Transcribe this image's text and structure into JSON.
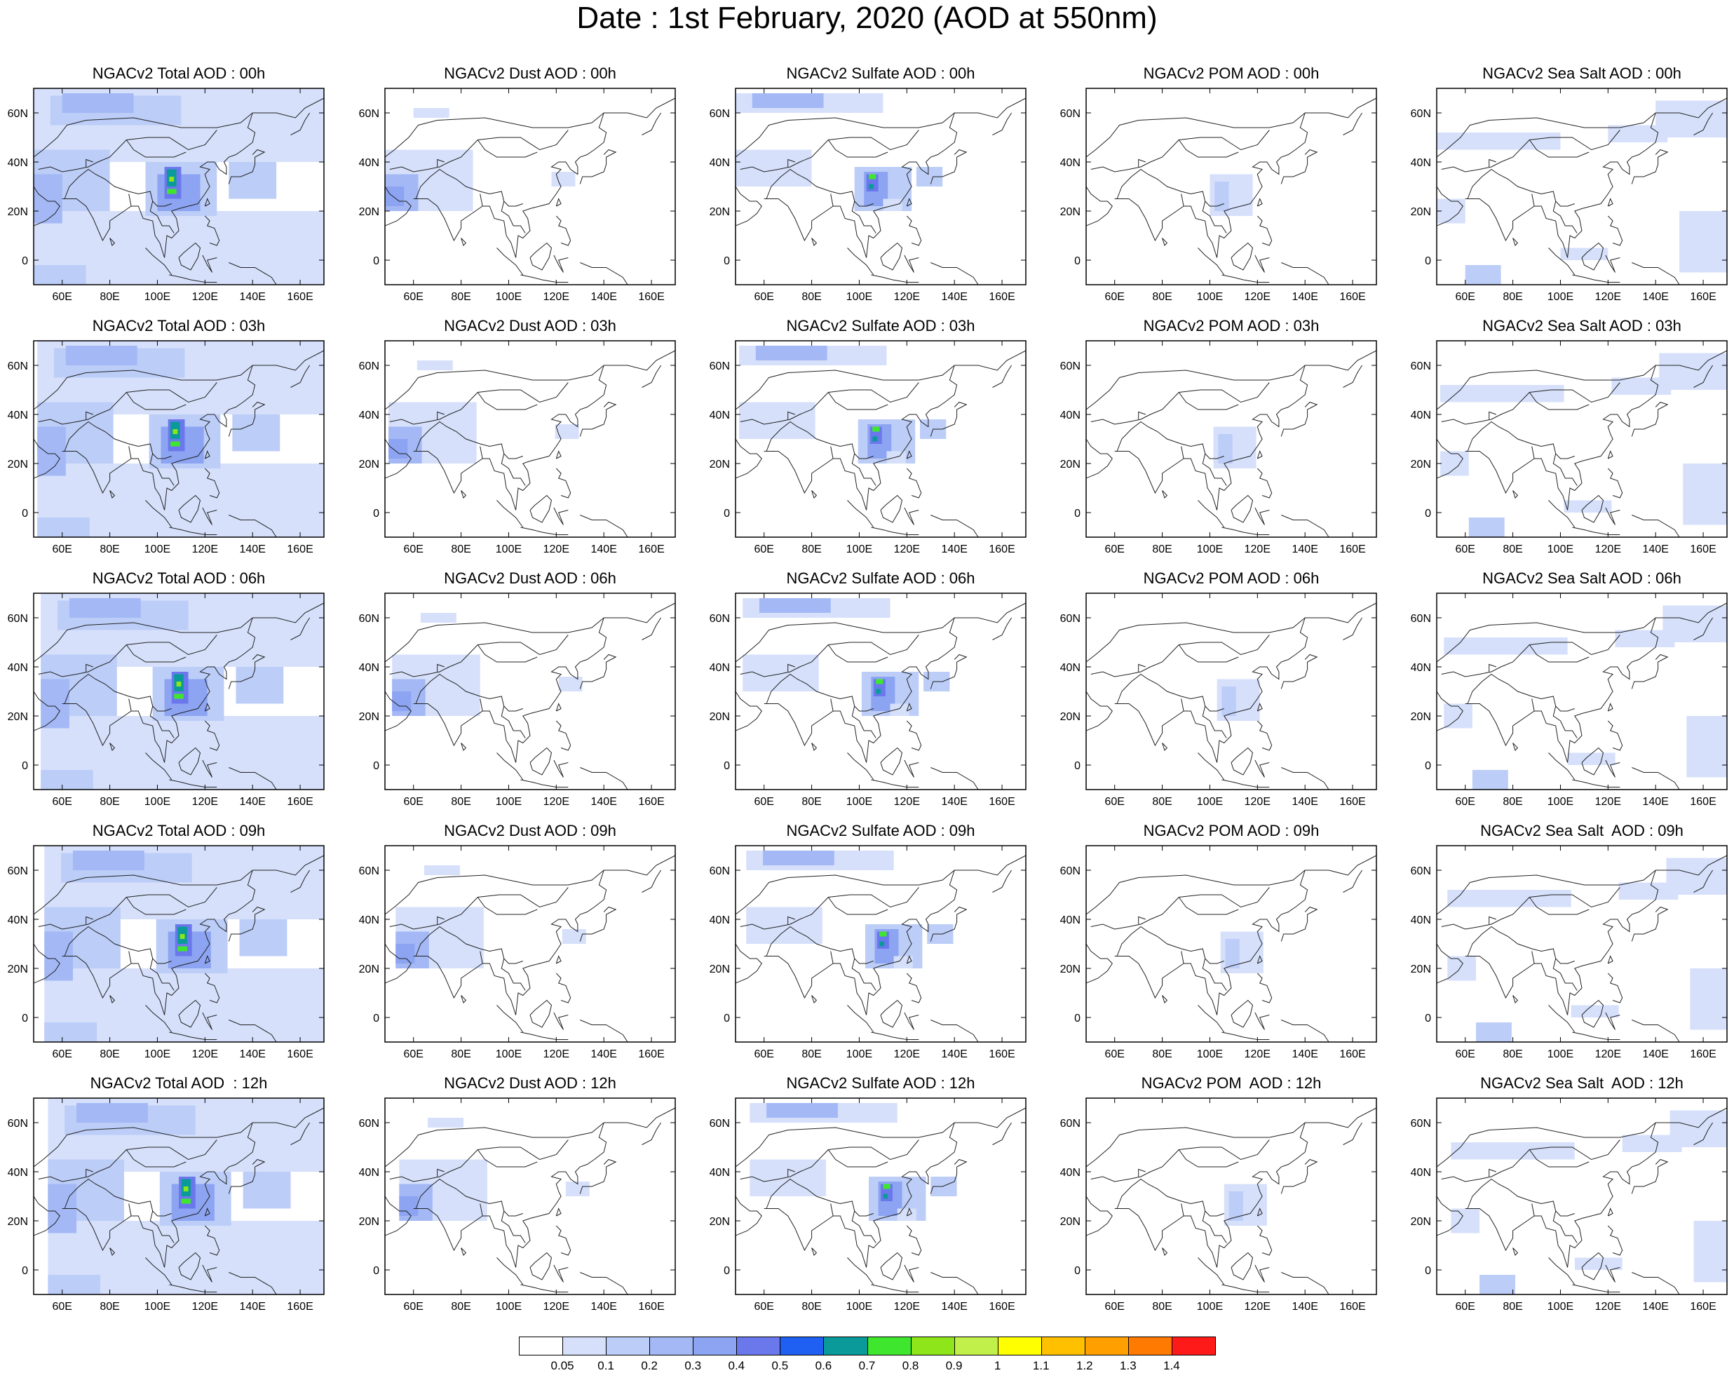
{
  "title": "Date : 1st February, 2020 (AOD at 550nm)",
  "panels": [
    [
      "NGACv2 Total AOD : 00h",
      "NGACv2 Dust AOD : 00h",
      "NGACv2 Sulfate AOD : 00h",
      "NGACv2 POM AOD : 00h",
      "NGACv2 Sea Salt AOD : 00h"
    ],
    [
      "NGACv2 Total AOD : 03h",
      "NGACv2 Dust AOD : 03h",
      "NGACv2 Sulfate AOD : 03h",
      "NGACv2 POM AOD : 03h",
      "NGACv2 Sea Salt AOD : 03h"
    ],
    [
      "NGACv2 Total AOD : 06h",
      "NGACv2 Dust AOD : 06h",
      "NGACv2 Sulfate AOD : 06h",
      "NGACv2 POM AOD : 06h",
      "NGACv2 Sea Salt AOD : 06h"
    ],
    [
      "NGACv2 Total AOD : 09h",
      "NGACv2 Dust AOD : 09h",
      "NGACv2 Sulfate AOD : 09h",
      "NGACv2 POM AOD : 09h",
      "NGACv2 Sea Salt  AOD : 09h"
    ],
    [
      "NGACv2 Total AOD  : 12h",
      "NGACv2 Dust AOD : 12h",
      "NGACv2 Sulfate AOD : 12h",
      "NGACv2 POM  AOD : 12h",
      "NGACv2 Sea Salt  AOD : 12h"
    ]
  ],
  "lon_ticks": [
    "60E",
    "80E",
    "100E",
    "120E",
    "140E",
    "160E"
  ],
  "lat_ticks": [
    "60N",
    "40N",
    "20N",
    "0"
  ],
  "colorbar": {
    "colors": [
      "#ffffff",
      "#d6e0fb",
      "#bccdf8",
      "#a3b8f5",
      "#8ca4f2",
      "#6b78ec",
      "#1f5ff2",
      "#0a9a9a",
      "#3fe62e",
      "#8ee61a",
      "#c2f04a",
      "#ffff00",
      "#ffc000",
      "#ff9f00",
      "#ff7a00",
      "#ff1a1a"
    ],
    "labels": [
      "0.05",
      "0.1",
      "0.2",
      "0.3",
      "0.4",
      "0.5",
      "0.6",
      "0.7",
      "0.8",
      "0.9",
      "1",
      "1.1",
      "1.2",
      "1.3",
      "1.4"
    ]
  }
}
